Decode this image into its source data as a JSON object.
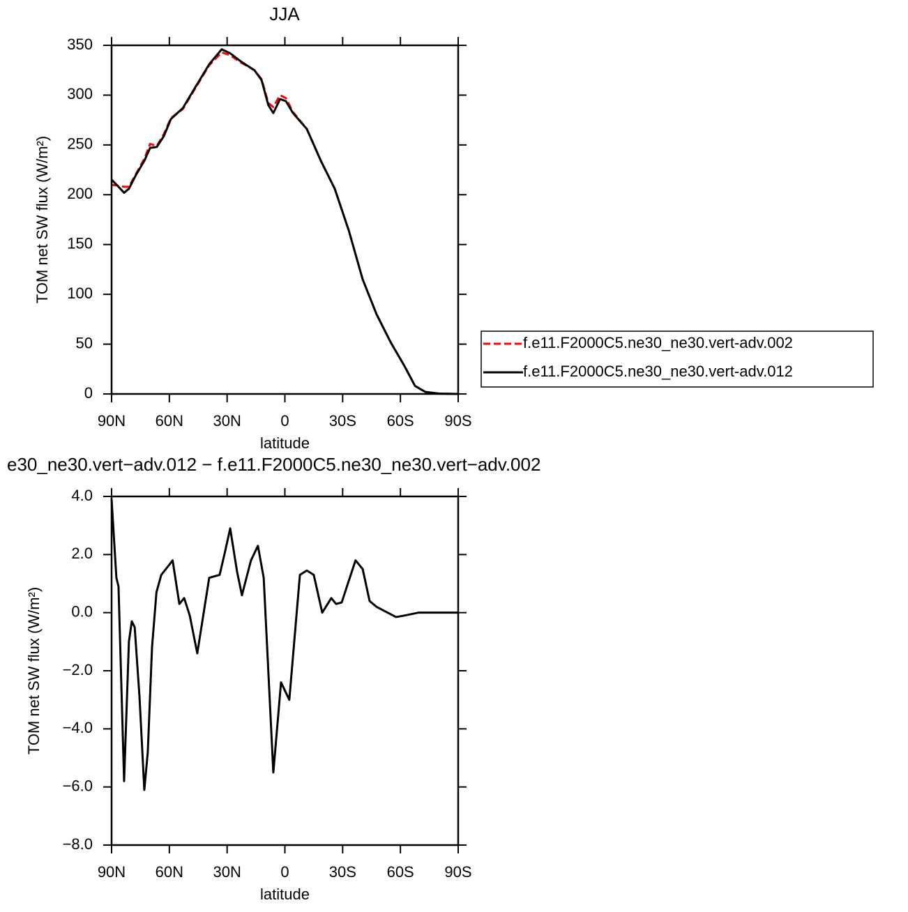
{
  "chart_data": [
    {
      "type": "line",
      "title": "JJA",
      "xlabel": "latitude",
      "ylabel": "TOM net SW flux (W/m²)",
      "xlim": [
        90,
        -90
      ],
      "ylim": [
        0,
        350
      ],
      "xticks": [
        {
          "value": 90,
          "label": "90N"
        },
        {
          "value": 60,
          "label": "60N"
        },
        {
          "value": 30,
          "label": "30N"
        },
        0,
        {
          "value": -30,
          "label": "30S"
        },
        {
          "value": -60,
          "label": "60S"
        },
        {
          "value": -90,
          "label": "90S"
        }
      ],
      "yticks": [
        0,
        50,
        100,
        150,
        200,
        250,
        300,
        350
      ],
      "legend": "right",
      "x": [
        90,
        86.4,
        83.5,
        81,
        77.3,
        73,
        70,
        66.5,
        62.8,
        59.2,
        53,
        46.5,
        39.3,
        32.8,
        28.4,
        23,
        15.8,
        12.1,
        8.6,
        6,
        2.5,
        -0.5,
        -4.2,
        -11.4,
        -18.7,
        -25.9,
        -33.2,
        -40.4,
        -47.6,
        -54.9,
        -62.1,
        -67.6,
        -73,
        -80.3,
        -90
      ],
      "series": [
        {
          "name": "f.e11.F2000C5.ne30_ne30.vert-adv.002",
          "color": "#ff0000",
          "linestyle": "dashed",
          "values": [
            210,
            209,
            208,
            208,
            221,
            236,
            251,
            249,
            261,
            277,
            286,
            307,
            330,
            343,
            340,
            333,
            325,
            316,
            292,
            288,
            300,
            297,
            283,
            266,
            234,
            206,
            164,
            115,
            80,
            52,
            28,
            8,
            2,
            0.3,
            0
          ]
        },
        {
          "name": "f.e11.F2000C5.ne30_ne30.vert-adv.012",
          "color": "#000000",
          "linestyle": "solid",
          "values": [
            215,
            208,
            202,
            206,
            220,
            234,
            247,
            248,
            259,
            276,
            287,
            308,
            331,
            346,
            342,
            334,
            325,
            315,
            290,
            282,
            296,
            294,
            282,
            266,
            234,
            206,
            164,
            115,
            80,
            52,
            28,
            8,
            2,
            0.3,
            0
          ]
        }
      ]
    },
    {
      "type": "line",
      "title": "e30_ne30.vert−adv.012 − f.e11.F2000C5.ne30_ne30.vert−adv.002",
      "xlabel": "latitude",
      "ylabel": "TOM net SW flux (W/m²)",
      "xlim": [
        90,
        -90
      ],
      "ylim": [
        -8,
        4
      ],
      "xticks": [
        {
          "value": 90,
          "label": "90N"
        },
        {
          "value": 60,
          "label": "60N"
        },
        {
          "value": 30,
          "label": "30N"
        },
        0,
        {
          "value": -30,
          "label": "30S"
        },
        {
          "value": -60,
          "label": "60S"
        },
        {
          "value": -90,
          "label": "90S"
        }
      ],
      "yticks": [
        {
          "value": -8,
          "label": "−8.0"
        },
        {
          "value": -6,
          "label": "−6.0"
        },
        {
          "value": -4,
          "label": "−4.0"
        },
        {
          "value": -2,
          "label": "−2.0"
        },
        {
          "value": 0,
          "label": "0.0"
        },
        {
          "value": 2,
          "label": "2.0"
        },
        {
          "value": 4,
          "label": "4.0"
        }
      ],
      "x": [
        90,
        87.5,
        86.4,
        83.5,
        81,
        79.5,
        78,
        75.5,
        73,
        71.2,
        69,
        66.7,
        64.2,
        60.6,
        58.3,
        54.8,
        52.3,
        49.4,
        45.5,
        39.3,
        33.9,
        31.4,
        28.4,
        24.8,
        22.3,
        17.6,
        14,
        11,
        6,
        2,
        -2.3,
        -7.8,
        -11.4,
        -15,
        -19.4,
        -24.1,
        -26.6,
        -29.5,
        -34.2,
        -36.7,
        -40.4,
        -44,
        -47.6,
        -57.7,
        -62.1,
        -69.3,
        -90
      ],
      "series": [
        {
          "color": "#000000",
          "linestyle": "solid",
          "values": [
            3.9,
            1.2,
            0.9,
            -5.8,
            -1.0,
            -0.3,
            -0.5,
            -2.9,
            -6.1,
            -4.8,
            -1.2,
            0.7,
            1.3,
            1.6,
            1.8,
            0.3,
            0.5,
            -0.1,
            -1.4,
            1.2,
            1.3,
            2.0,
            2.9,
            1.4,
            0.6,
            1.8,
            2.3,
            1.2,
            -5.5,
            -2.4,
            -3.0,
            1.3,
            1.45,
            1.3,
            0.0,
            0.5,
            0.3,
            0.35,
            1.3,
            1.8,
            1.5,
            0.4,
            0.2,
            -0.15,
            -0.1,
            0,
            0
          ]
        }
      ]
    }
  ]
}
